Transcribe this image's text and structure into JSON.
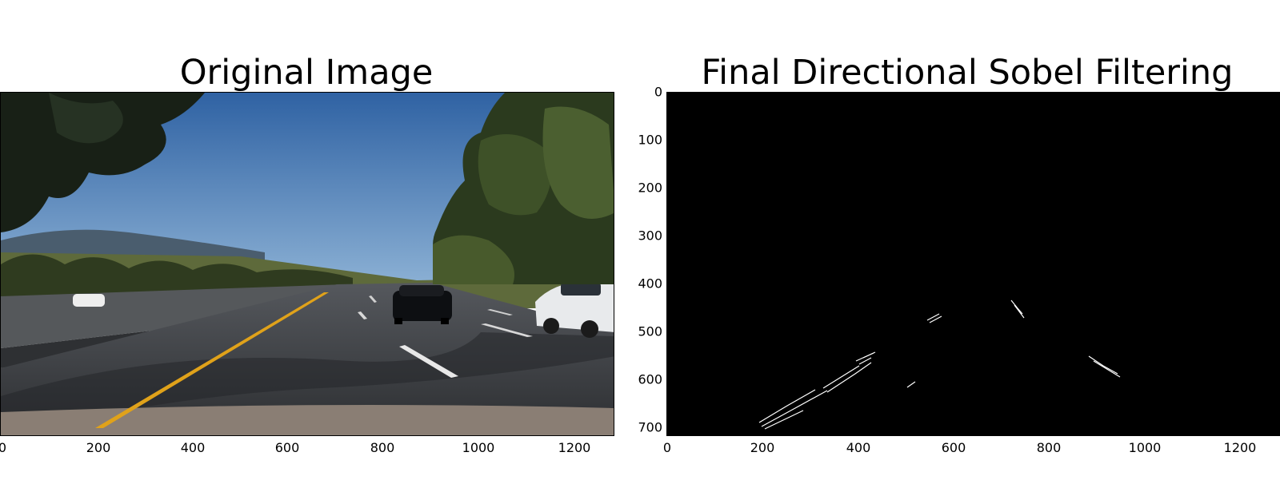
{
  "panels": [
    {
      "title": "Original Image",
      "x_ticks": [
        "0",
        "200",
        "400",
        "600",
        "800",
        "1000",
        "1200"
      ]
    },
    {
      "title": "Final Directional Sobel Filtering",
      "x_ticks": [
        "0",
        "200",
        "400",
        "600",
        "800",
        "1000",
        "1200"
      ],
      "y_ticks": [
        "0",
        "100",
        "200",
        "300",
        "400",
        "500",
        "600",
        "700"
      ]
    }
  ],
  "colors": {
    "sky": "#3b6fa8",
    "road": "#3a3c40",
    "lane_yellow": "#e0a21a",
    "filtered_background": "#000000",
    "edges": "#ffffff"
  }
}
